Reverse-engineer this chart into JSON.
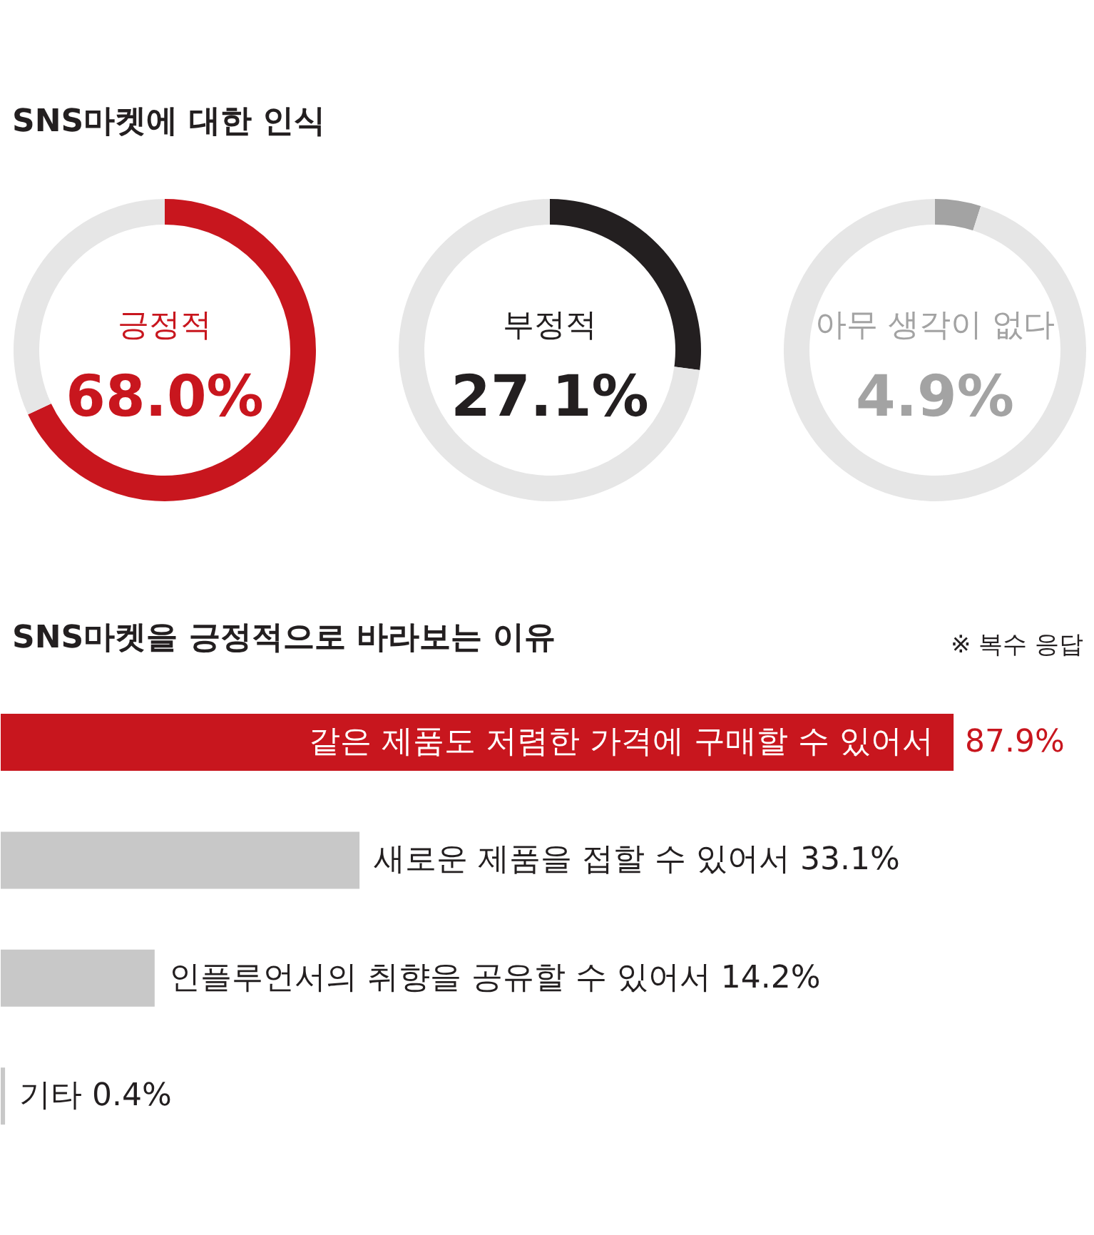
{
  "chart_data": [
    {
      "type": "donut",
      "title": "SNS마켓에 대한 인식",
      "categories": [
        "긍정적",
        null
      ],
      "values": [
        68.0,
        32.0
      ],
      "colors": [
        "#c8161e",
        "#e6e6e6"
      ],
      "value_labels": [
        "68.0%",
        null
      ]
    },
    {
      "type": "donut",
      "categories": [
        "부정적",
        null
      ],
      "values": [
        27.1,
        72.9
      ],
      "colors": [
        "#231f20",
        "#e6e6e6"
      ],
      "value_labels": [
        "27.1%",
        null
      ]
    },
    {
      "type": "donut",
      "categories": [
        "아무 생각이 없다",
        null
      ],
      "values": [
        4.9,
        95.1
      ],
      "colors": [
        "#a3a3a3",
        "#e6e6e6"
      ],
      "value_labels": [
        "4.9%",
        null
      ]
    },
    {
      "type": "bar",
      "orientation": "horizontal",
      "title": "SNS마켓을 긍정적으로 바라보는 이유",
      "subtitle": "※ 복수 응답",
      "categories": [
        "같은 제품도 저렴한 가격에 구매할 수 있어서",
        "새로운 제품을 접할 수 있어서",
        "인플루언서의 취향을 공유할 수 있어서",
        "기타"
      ],
      "values": [
        87.9,
        33.1,
        14.2,
        0.4
      ],
      "colors": [
        "#c8161e",
        "#c8c8c8",
        "#c8c8c8",
        "#c8c8c8"
      ],
      "value_labels": [
        "87.9%",
        "33.1%",
        "14.2%",
        "0.4%"
      ]
    }
  ]
}
